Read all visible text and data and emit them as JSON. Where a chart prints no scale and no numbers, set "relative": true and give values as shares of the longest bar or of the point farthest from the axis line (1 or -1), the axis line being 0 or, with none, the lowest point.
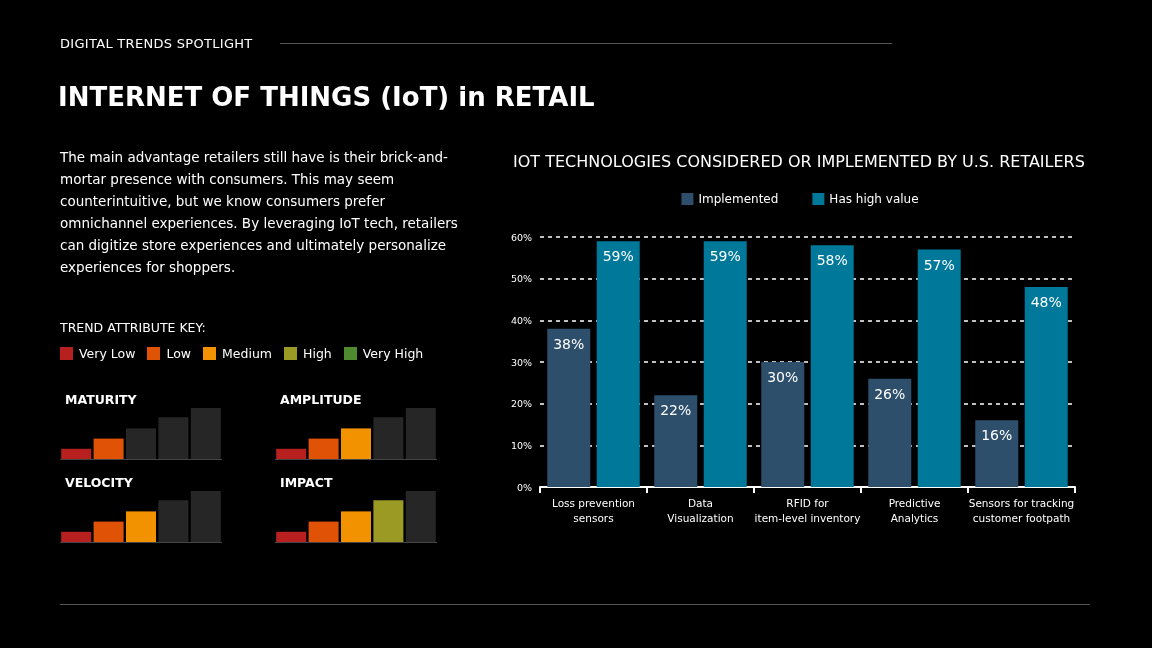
{
  "chart_data": [
    {
      "type": "other",
      "subtitle": "DIGITAL TRENDS SPOTLIGHT",
      "title": "INTERNET OF THINGS (IoT) in RETAIL",
      "annotations": [
        "The main advantage retailers still have is their brick-and-mortar presence with consumers. This may seem counterintuitive, but we know consumers prefer omnichannel experiences. By leveraging IoT tech, retailers can digitize store experiences and ultimately personalize experiences for shoppers."
      ],
      "legend_title": "TREND ATTRIBUTE KEY:",
      "categories": [
        "Very Low",
        "Low",
        "Medium",
        "High",
        "Very High"
      ],
      "colors": [
        "#b8201f",
        "#e05206",
        "#f39200",
        "#9a9a25",
        "#4e8a2e"
      ]
    },
    {
      "type": "bar",
      "title": "MATURITY",
      "relative": true,
      "categories": [
        null,
        null,
        null,
        null,
        null
      ],
      "values": [
        0.2,
        0.4,
        0.6,
        0.82,
        1
      ],
      "colors": [
        "#b8201f",
        "#e05206",
        "#262626",
        "#262626",
        "#262626"
      ]
    },
    {
      "type": "bar",
      "title": "AMPLITUDE",
      "relative": true,
      "categories": [
        null,
        null,
        null,
        null,
        null
      ],
      "values": [
        0.2,
        0.4,
        0.6,
        0.82,
        1
      ],
      "colors": [
        "#b8201f",
        "#e05206",
        "#f39200",
        "#262626",
        "#262626"
      ]
    },
    {
      "type": "bar",
      "title": "VELOCITY",
      "relative": true,
      "categories": [
        null,
        null,
        null,
        null,
        null
      ],
      "values": [
        0.2,
        0.4,
        0.6,
        0.82,
        1
      ],
      "colors": [
        "#b8201f",
        "#e05206",
        "#f39200",
        "#262626",
        "#262626"
      ]
    },
    {
      "type": "bar",
      "title": "IMPACT",
      "relative": true,
      "categories": [
        null,
        null,
        null,
        null,
        null
      ],
      "values": [
        0.2,
        0.4,
        0.6,
        0.82,
        1
      ],
      "colors": [
        "#b8201f",
        "#e05206",
        "#f39200",
        "#9a9a25",
        "#262626"
      ]
    },
    {
      "type": "bar",
      "title": "IOT TECHNOLOGIES CONSIDERED OR IMPLEMENTED BY U.S. RETAILERS",
      "categories": [
        "Loss prevention\nsensors",
        "Data\nVisualization",
        "RFID for\nitem-level inventory",
        "Predictive\nAnalytics",
        "Sensors for tracking\ncustomer footpath"
      ],
      "series": [
        {
          "name": "Implemented",
          "color": "#2d4f6c",
          "values": [
            38,
            22,
            30,
            26,
            16
          ],
          "value_labels": [
            "38%",
            "22%",
            "30%",
            "26%",
            "16%"
          ]
        },
        {
          "name": "Has high value",
          "color": "#00789a",
          "values": [
            59,
            59,
            58,
            57,
            48
          ],
          "value_labels": [
            "59%",
            "59%",
            "58%",
            "57%",
            "48%"
          ]
        }
      ],
      "ylim": [
        0,
        60
      ],
      "yticks": [
        {
          "value": 0,
          "label": "0%"
        },
        {
          "value": 10,
          "label": "10%"
        },
        {
          "value": 20,
          "label": "20%"
        },
        {
          "value": 30,
          "label": "30%"
        },
        {
          "value": 40,
          "label": "40%"
        },
        {
          "value": 50,
          "label": "50%"
        },
        {
          "value": 60,
          "label": "60%"
        }
      ],
      "grid": "y",
      "legend": "top"
    }
  ]
}
